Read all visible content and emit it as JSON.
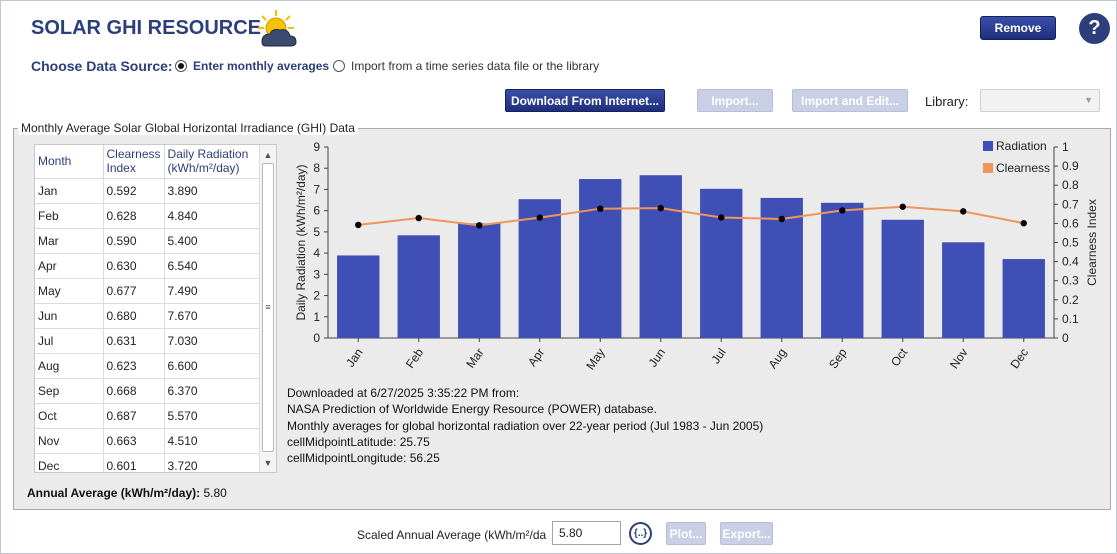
{
  "header": {
    "title": "SOLAR GHI RESOURCE",
    "remove_label": "Remove",
    "help_label": "?"
  },
  "source": {
    "label": "Choose Data Source:",
    "option_monthly": "Enter monthly averages",
    "option_file": "Import from a time series data file or the library",
    "selected": "monthly"
  },
  "toolbar": {
    "download_label": "Download From Internet...",
    "import_label": "Import...",
    "import_edit_label": "Import and Edit...",
    "library_label": "Library:",
    "library_value": ""
  },
  "group": {
    "title": "Monthly Average Solar Global Horizontal Irradiance (GHI) Data"
  },
  "table": {
    "headers": [
      "Month",
      "Clearness Index",
      "Daily Radiation (kWh/m²/day)"
    ],
    "rows": [
      {
        "month": "Jan",
        "clearness": "0.592",
        "radiation": "3.890"
      },
      {
        "month": "Feb",
        "clearness": "0.628",
        "radiation": "4.840"
      },
      {
        "month": "Mar",
        "clearness": "0.590",
        "radiation": "5.400"
      },
      {
        "month": "Apr",
        "clearness": "0.630",
        "radiation": "6.540"
      },
      {
        "month": "May",
        "clearness": "0.677",
        "radiation": "7.490"
      },
      {
        "month": "Jun",
        "clearness": "0.680",
        "radiation": "7.670"
      },
      {
        "month": "Jul",
        "clearness": "0.631",
        "radiation": "7.030"
      },
      {
        "month": "Aug",
        "clearness": "0.623",
        "radiation": "6.600"
      },
      {
        "month": "Sep",
        "clearness": "0.668",
        "radiation": "6.370"
      },
      {
        "month": "Oct",
        "clearness": "0.687",
        "radiation": "5.570"
      },
      {
        "month": "Nov",
        "clearness": "0.663",
        "radiation": "4.510"
      },
      {
        "month": "Dec",
        "clearness": "0.601",
        "radiation": "3.720"
      }
    ]
  },
  "annual": {
    "label": "Annual Average (kWh/m²/day):",
    "value": "5.80"
  },
  "info": {
    "lines": [
      "Downloaded at 6/27/2025 3:35:22 PM from:",
      "NASA Prediction of Worldwide Energy Resource (POWER)  database.",
      "Monthly averages for global horizontal radiation over 22-year period (Jul 1983 - Jun 2005)",
      "cellMidpointLatitude: 25.75",
      "cellMidpointLongitude: 56.25"
    ]
  },
  "footer": {
    "scaled_label": "Scaled Annual Average (kWh/m²/da",
    "scaled_value": "5.80",
    "ellipsis_label": "{..}",
    "plot_label": "Plot...",
    "export_label": "Export..."
  },
  "colors": {
    "bar": "#3f4fb5",
    "line": "#f0955a",
    "marker": "#000000",
    "title_blue": "#2d3f7a"
  },
  "chart_data": {
    "type": "bar",
    "categories": [
      "Jan",
      "Feb",
      "Mar",
      "Apr",
      "May",
      "Jun",
      "Jul",
      "Aug",
      "Sep",
      "Oct",
      "Nov",
      "Dec"
    ],
    "series": [
      {
        "name": "Radiation",
        "type": "bar",
        "axis": "left",
        "values": [
          3.89,
          4.84,
          5.4,
          6.54,
          7.49,
          7.67,
          7.03,
          6.6,
          6.37,
          5.57,
          4.51,
          3.72
        ]
      },
      {
        "name": "Clearness",
        "type": "line",
        "axis": "right",
        "values": [
          0.592,
          0.628,
          0.59,
          0.63,
          0.677,
          0.68,
          0.631,
          0.623,
          0.668,
          0.687,
          0.663,
          0.601
        ]
      }
    ],
    "ylabel": "Daily Radiation (kWh/m²/day)",
    "y2label": "Clearness Index",
    "ylim": [
      0,
      9
    ],
    "y2lim": [
      0,
      1
    ],
    "yticks": [
      "0",
      "1",
      "2",
      "3",
      "4",
      "5",
      "6",
      "7",
      "8",
      "9"
    ],
    "y2ticks": [
      "0",
      "0.1",
      "0.2",
      "0.3",
      "0.4",
      "0.5",
      "0.6",
      "0.7",
      "0.8",
      "0.9",
      "1"
    ],
    "legend": "top-right",
    "grid": false
  }
}
